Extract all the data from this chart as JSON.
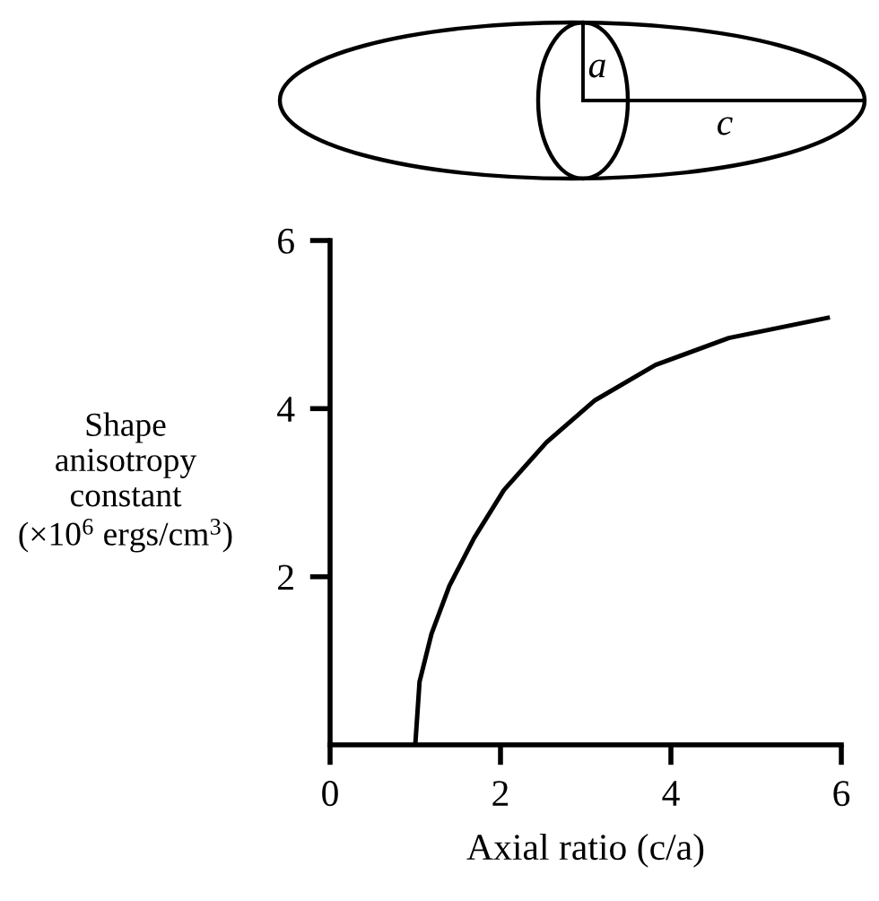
{
  "chart_data": {
    "type": "line",
    "xlabel": "Axial ratio (c/a)",
    "ylabel": "Shape\nanisotropy\nconstant\n(×10$^{6}$ ergs/cm$^{3}$)",
    "annotations": [
      "a",
      "c"
    ],
    "series": [
      {
        "color": "#000000",
        "x": [
          1.0,
          1.05,
          1.19,
          1.4,
          1.69,
          2.04,
          2.54,
          3.11,
          3.82,
          4.68,
          5.84
        ],
        "values": [
          0,
          0.75,
          1.32,
          1.89,
          2.46,
          3.03,
          3.6,
          4.1,
          4.52,
          4.84,
          5.08
        ]
      }
    ],
    "xlim": [
      0,
      6
    ],
    "ylim": [
      0,
      6
    ],
    "xticks": [
      {
        "value": 0,
        "label": "0"
      },
      2,
      4,
      6
    ],
    "yticks": [
      2,
      4,
      6
    ],
    "grid": false,
    "marker": "none",
    "line_style": "solid"
  }
}
